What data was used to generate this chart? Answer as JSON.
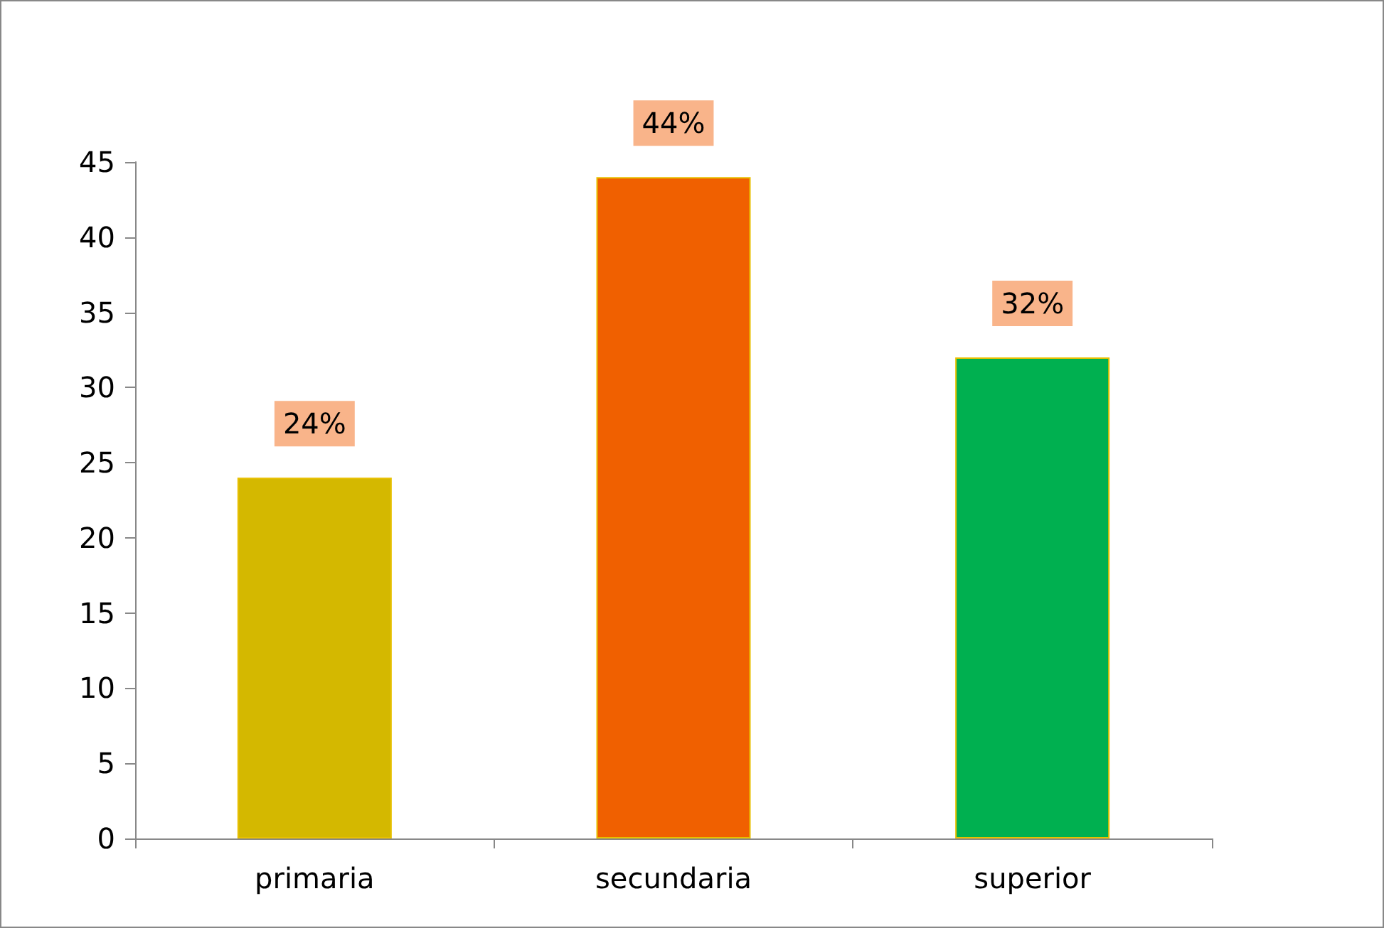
{
  "chart_data": {
    "type": "bar",
    "categories": [
      "primaria",
      "secundaria",
      "superior"
    ],
    "values": [
      24,
      44,
      32
    ],
    "colors": [
      "#d4b800",
      "#f06000",
      "#00b050"
    ],
    "value_labels": [
      "24%",
      "44%",
      "32%"
    ],
    "ylim": [
      0,
      45
    ],
    "yticks": [
      0,
      5,
      10,
      15,
      20,
      25,
      30,
      35,
      40,
      45
    ],
    "grid": false
  }
}
